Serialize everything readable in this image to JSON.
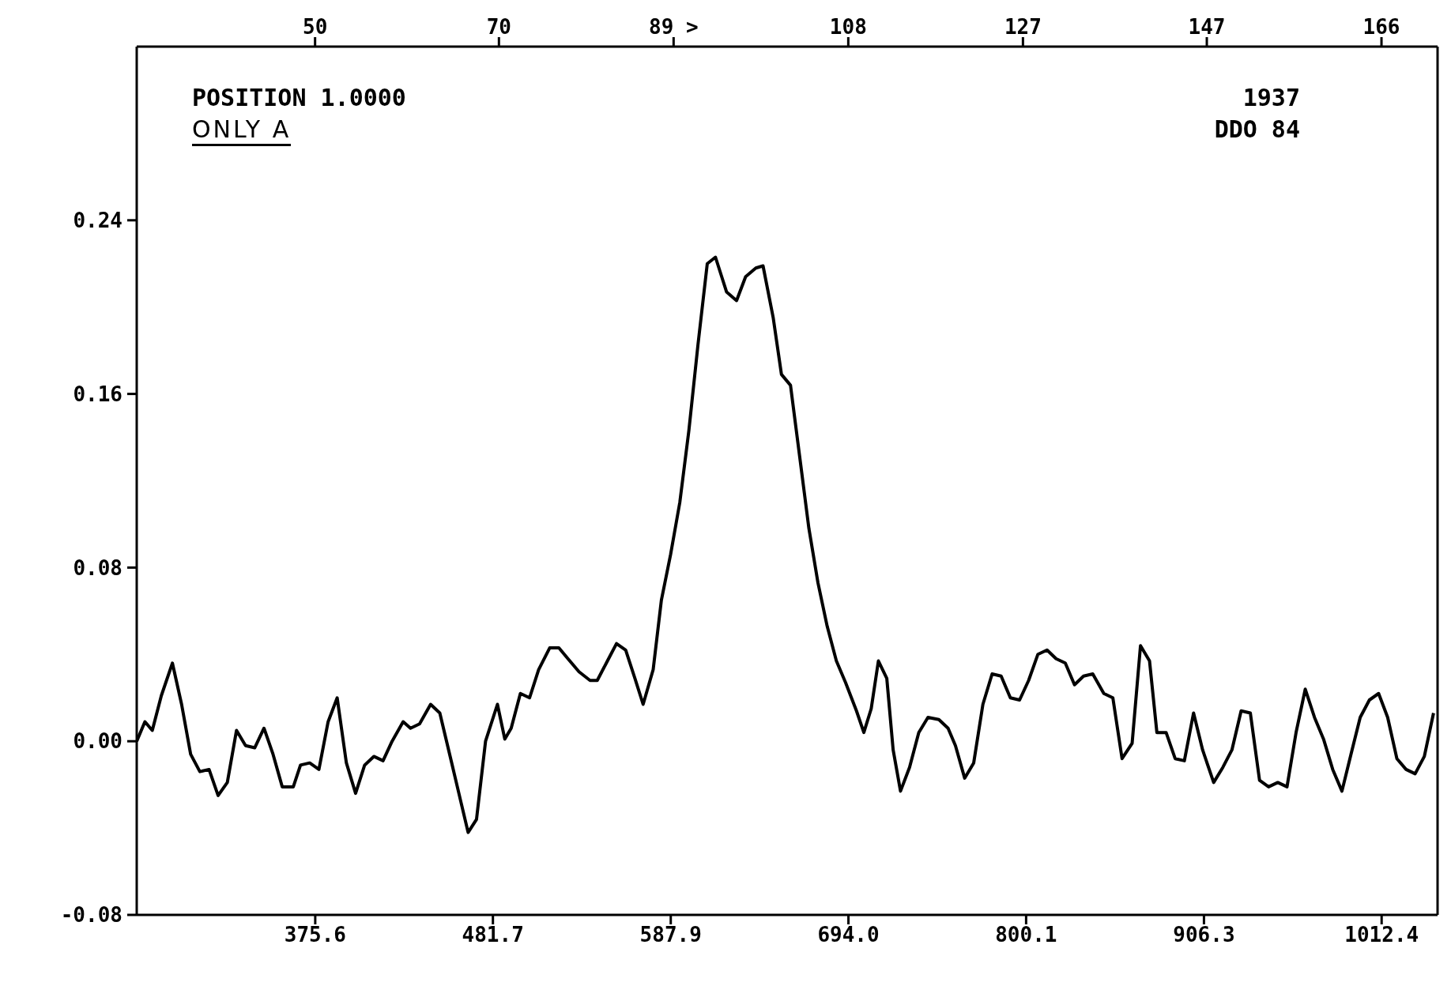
{
  "chart_data": {
    "type": "line",
    "annotations": [
      "POSITION 1.0000",
      "ONLY A",
      "1937",
      "DDO 84"
    ],
    "x": [
      269.0,
      273.9,
      278.3,
      283.7,
      290.3,
      295.8,
      301.2,
      306.7,
      312.2,
      317.6,
      323.1,
      328.6,
      334.0,
      339.5,
      345.0,
      350.4,
      355.9,
      362.5,
      366.8,
      372.3,
      377.8,
      383.3,
      388.7,
      394.2,
      399.7,
      405.1,
      410.6,
      416.1,
      421.5,
      428.1,
      432.5,
      437.9,
      444.5,
      450.0,
      457.1,
      462.6,
      466.9,
      471.9,
      477.3,
      484.4,
      488.8,
      492.6,
      498.1,
      503.6,
      509.0,
      515.6,
      521.1,
      526.5,
      533.1,
      539.7,
      544.0,
      550.1,
      555.5,
      561.0,
      566.5,
      571.4,
      577.4,
      582.3,
      587.8,
      593.3,
      598.7,
      604.2,
      609.7,
      614.6,
      621.2,
      627.2,
      632.6,
      638.7,
      643.0,
      649.1,
      654.0,
      659.4,
      664.9,
      670.4,
      675.8,
      681.3,
      686.8,
      692.3,
      698.8,
      703.2,
      707.6,
      711.9,
      716.9,
      720.7,
      725.1,
      730.5,
      736.0,
      741.5,
      748.0,
      753.5,
      757.9,
      763.4,
      768.8,
      774.3,
      779.8,
      785.2,
      790.7,
      796.2,
      801.6,
      807.1,
      812.6,
      818.0,
      823.5,
      829.0,
      834.4,
      839.9,
      846.5,
      851.9,
      857.4,
      863.4,
      868.4,
      873.8,
      878.2,
      883.7,
      889.1,
      894.6,
      900.1,
      905.5,
      912.1,
      917.6,
      923.0,
      928.5,
      934.0,
      939.5,
      944.9,
      950.4,
      955.9,
      961.3,
      966.8,
      972.3,
      977.7,
      983.2,
      988.7,
      994.1,
      999.6,
      1005.1,
      1010.6,
      1016.0,
      1021.5,
      1027.0,
      1032.4,
      1037.9,
      1043.4
    ],
    "series": [
      {
        "color": "#000000",
        "values": [
          0.0,
          0.009,
          0.005,
          0.021,
          0.036,
          0.017,
          -0.006,
          -0.014,
          -0.013,
          -0.025,
          -0.019,
          0.005,
          -0.002,
          -0.003,
          0.006,
          -0.006,
          -0.021,
          -0.021,
          -0.011,
          -0.01,
          -0.013,
          0.009,
          0.02,
          -0.01,
          -0.024,
          -0.011,
          -0.007,
          -0.009,
          0.0,
          0.009,
          0.006,
          0.008,
          0.017,
          0.013,
          -0.01,
          -0.028,
          -0.042,
          -0.036,
          0.0,
          0.017,
          0.001,
          0.006,
          0.022,
          0.02,
          0.033,
          0.043,
          0.043,
          0.038,
          0.032,
          0.028,
          0.028,
          0.037,
          0.045,
          0.042,
          0.029,
          0.017,
          0.033,
          0.065,
          0.086,
          0.11,
          0.143,
          0.183,
          0.22,
          0.223,
          0.207,
          0.203,
          0.214,
          0.218,
          0.219,
          0.195,
          0.169,
          0.164,
          0.131,
          0.098,
          0.073,
          0.053,
          0.037,
          0.027,
          0.014,
          0.004,
          0.015,
          0.037,
          0.029,
          -0.004,
          -0.023,
          -0.012,
          0.004,
          0.011,
          0.01,
          0.006,
          -0.002,
          -0.017,
          -0.01,
          0.017,
          0.031,
          0.03,
          0.02,
          0.019,
          0.028,
          0.04,
          0.042,
          0.038,
          0.036,
          0.026,
          0.03,
          0.031,
          0.022,
          0.02,
          -0.008,
          -0.001,
          0.044,
          0.037,
          0.004,
          0.004,
          -0.008,
          -0.009,
          0.013,
          -0.004,
          -0.019,
          -0.012,
          -0.004,
          0.014,
          0.013,
          -0.018,
          -0.021,
          -0.019,
          -0.021,
          0.004,
          0.024,
          0.011,
          0.001,
          -0.013,
          -0.023,
          -0.006,
          0.011,
          0.019,
          0.022,
          0.011,
          -0.008,
          -0.013,
          -0.015,
          -0.007,
          0.013
        ]
      }
    ],
    "xlim": [
      269.0,
      1045.8
    ],
    "xticks": [
      375.6,
      481.7,
      587.9,
      {
        "value": 694,
        "label": "694.0"
      },
      800.1,
      906.3,
      1012.4
    ],
    "x2lim": [
      30.6,
      172.1
    ],
    "x2ticks": [
      50,
      70,
      {
        "value": 89,
        "label": "89 >"
      },
      108,
      127,
      147,
      166
    ],
    "ylim": [
      -0.08,
      0.32
    ],
    "yticks": [
      {
        "value": -0.08,
        "label": "-0.08"
      },
      {
        "value": 0,
        "label": "0.00"
      },
      {
        "value": 0.08,
        "label": "0.08"
      },
      {
        "value": 0.16,
        "label": "0.16"
      },
      {
        "value": 0.24,
        "label": "0.24"
      }
    ],
    "grid": false,
    "marker": "none",
    "line_style": "solid"
  }
}
